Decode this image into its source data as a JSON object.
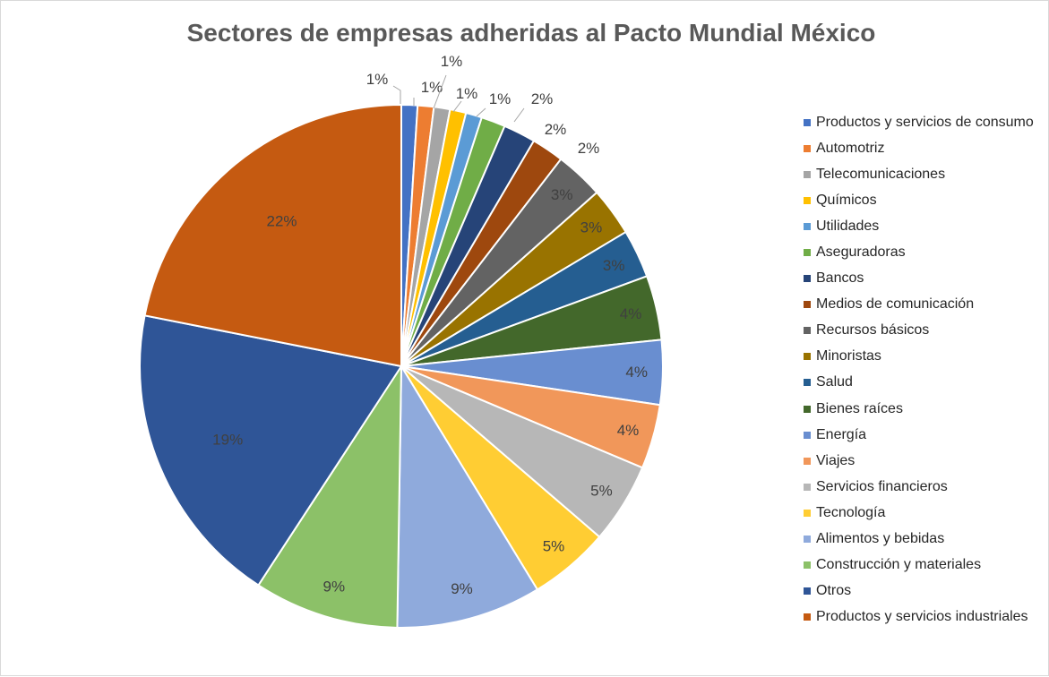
{
  "chart_data": {
    "type": "pie",
    "title": "Sectores de empresas adheridas al Pacto Mundial México",
    "legend_position": "right",
    "start_angle_deg": 0,
    "direction": "clockwise",
    "slices": [
      {
        "name": "Productos y servicios de consumo",
        "value": 1,
        "label": "1%",
        "color": "#4472C4"
      },
      {
        "name": "Automotriz",
        "value": 1,
        "label": "1%",
        "color": "#ED7D31"
      },
      {
        "name": "Telecomunicaciones",
        "value": 1,
        "label": "1%",
        "color": "#A5A5A5"
      },
      {
        "name": "Químicos",
        "value": 1,
        "label": "1%",
        "color": "#FFC000"
      },
      {
        "name": "Utilidades",
        "value": 1,
        "label": "1%",
        "color": "#5B9BD5"
      },
      {
        "name": "Aseguradoras",
        "value": 1.5,
        "label": "2%",
        "color": "#70AD47"
      },
      {
        "name": "Bancos",
        "value": 2,
        "label": "2%",
        "color": "#264478"
      },
      {
        "name": "Medios de comunicación",
        "value": 2,
        "label": "2%",
        "color": "#9E480E"
      },
      {
        "name": "Recursos básicos",
        "value": 3,
        "label": "3%",
        "color": "#636363"
      },
      {
        "name": "Minoristas",
        "value": 3,
        "label": "3%",
        "color": "#997300"
      },
      {
        "name": "Salud",
        "value": 3,
        "label": "3%",
        "color": "#255E91"
      },
      {
        "name": "Bienes raíces",
        "value": 4,
        "label": "4%",
        "color": "#43682B"
      },
      {
        "name": "Energía",
        "value": 4,
        "label": "4%",
        "color": "#698ED0"
      },
      {
        "name": "Viajes",
        "value": 4,
        "label": "4%",
        "color": "#F1975A"
      },
      {
        "name": "Servicios financieros",
        "value": 5,
        "label": "5%",
        "color": "#B7B7B7"
      },
      {
        "name": "Tecnología",
        "value": 5,
        "label": "5%",
        "color": "#FFCD33"
      },
      {
        "name": "Alimentos y bebidas",
        "value": 9,
        "label": "9%",
        "color": "#8FAADC"
      },
      {
        "name": "Construcción y materiales",
        "value": 9,
        "label": "9%",
        "color": "#8CC168"
      },
      {
        "name": "Otros",
        "value": 19,
        "label": "19%",
        "color": "#2F5597"
      },
      {
        "name": "Productos y servicios industriales",
        "value": 22,
        "label": "22%",
        "color": "#C55A11"
      }
    ]
  }
}
